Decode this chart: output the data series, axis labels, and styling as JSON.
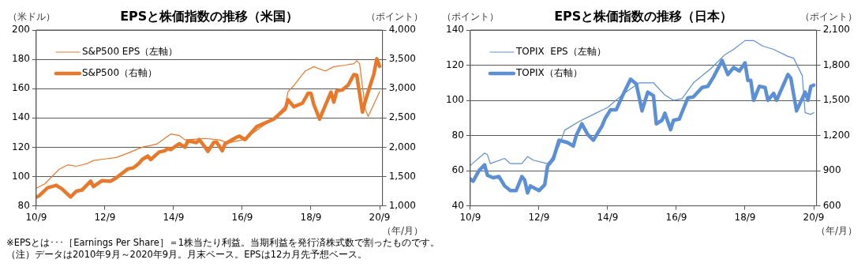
{
  "chart_data": [
    {
      "type": "line",
      "title": "EPSと株価指数の推移（米国）",
      "ylabel": "（米ドル）",
      "y2label": "（ポイント）",
      "xlabel": "（年/月）",
      "xlim": [
        "2010-09",
        "2020-10"
      ],
      "xticks": [
        {
          "value": "2010-09",
          "label": "10/9"
        },
        {
          "value": "2012-09",
          "label": "12/9"
        },
        {
          "value": "2014-09",
          "label": "14/9"
        },
        {
          "value": "2016-09",
          "label": "16/9"
        },
        {
          "value": "2018-09",
          "label": "18/9"
        },
        {
          "value": "2020-09",
          "label": "20/9"
        }
      ],
      "ylim": [
        80,
        200
      ],
      "yticks": [
        80,
        100,
        120,
        140,
        160,
        180,
        200
      ],
      "y2lim": [
        1000,
        4000
      ],
      "y2ticks": [
        {
          "value": 1000,
          "label": "1,000"
        },
        {
          "value": 1500,
          "label": "1,500"
        },
        {
          "value": 2000,
          "label": "2,000"
        },
        {
          "value": 2500,
          "label": "2,500"
        },
        {
          "value": 3000,
          "label": "3,000"
        },
        {
          "value": 3500,
          "label": "3,500"
        },
        {
          "value": 4000,
          "label": "4,000"
        }
      ],
      "grid": "y",
      "legend": "top left",
      "marker": "none",
      "series": [
        {
          "name": "S&P500 EPS（左軸）",
          "color": "#e8782a",
          "x": [
            "2010-09",
            "2010-12",
            "2011-05",
            "2011-08",
            "2011-11",
            "2012-03",
            "2012-05",
            "2012-09",
            "2013-01",
            "2013-05",
            "2013-10",
            "2014-03",
            "2014-08",
            "2014-11",
            "2015-01",
            "2015-08",
            "2016-01",
            "2016-04",
            "2016-09",
            "2017-01",
            "2017-08",
            "2017-12",
            "2018-01",
            "2018-03",
            "2018-07",
            "2018-10",
            "2019-02",
            "2019-05",
            "2019-09",
            "2019-12",
            "2020-01",
            "2020-02",
            "2020-04",
            "2020-05",
            "2020-09"
          ],
          "values": [
            92,
            95,
            105,
            108,
            107,
            109,
            111,
            112,
            113,
            116,
            120,
            122,
            129,
            128,
            125,
            126,
            125,
            123,
            125,
            130,
            140,
            148,
            158,
            162,
            172,
            175,
            172,
            175,
            176,
            177,
            179,
            177,
            146,
            141,
            158
          ]
        },
        {
          "name": "S&P500（右軸）",
          "color": "#e8782a",
          "axis": "y2",
          "x": [
            "2010-09",
            "2010-10",
            "2011-01",
            "2011-04",
            "2011-06",
            "2011-09",
            "2011-11",
            "2012-01",
            "2012-04",
            "2012-05",
            "2012-08",
            "2012-11",
            "2013-01",
            "2013-05",
            "2013-07",
            "2013-09",
            "2013-10",
            "2013-12",
            "2014-01",
            "2014-04",
            "2014-06",
            "2014-07",
            "2014-08",
            "2014-11",
            "2015-01",
            "2015-02",
            "2015-05",
            "2015-06",
            "2015-08",
            "2015-09",
            "2015-11",
            "2015-12",
            "2016-02",
            "2016-03",
            "2016-07",
            "2016-08",
            "2016-10",
            "2017-02",
            "2017-08",
            "2017-12",
            "2018-01",
            "2018-03",
            "2018-06",
            "2018-08",
            "2018-09",
            "2018-10",
            "2018-12",
            "2019-02",
            "2019-04",
            "2019-05",
            "2019-06",
            "2019-08",
            "2019-10",
            "2019-12",
            "2020-01",
            "2020-03",
            "2020-04",
            "2020-06",
            "2020-07",
            "2020-08",
            "2020-09"
          ],
          "values": [
            1150,
            1170,
            1310,
            1350,
            1290,
            1150,
            1250,
            1270,
            1420,
            1330,
            1430,
            1420,
            1480,
            1630,
            1650,
            1730,
            1790,
            1850,
            1790,
            1920,
            1940,
            1980,
            1960,
            2060,
            2000,
            2110,
            2080,
            2130,
            2000,
            1930,
            2080,
            2090,
            1940,
            2060,
            2170,
            2190,
            2130,
            2350,
            2480,
            2650,
            2810,
            2690,
            2750,
            2920,
            2920,
            2730,
            2480,
            2710,
            2940,
            2770,
            2960,
            2980,
            3060,
            3240,
            3230,
            2600,
            2790,
            3100,
            3250,
            3510,
            3380
          ]
        }
      ],
      "annotations": [
        "※EPSとは･･･［Earnings Per Share］＝1株当たり利益。当期利益を発行済株式数で割ったものです。",
        "（注）データは2010年9月～2020年9月。月末ベース。EPSは12カ月先予想ベース。"
      ]
    },
    {
      "type": "line",
      "title": "EPSと株価指数の推移（日本）",
      "ylabel": "（ポイント）",
      "y2label": "（ポイント）",
      "xlabel": "（年/月）",
      "xlim": [
        "2010-09",
        "2020-10"
      ],
      "xticks": [
        {
          "value": "2010-09",
          "label": "10/9"
        },
        {
          "value": "2012-09",
          "label": "12/9"
        },
        {
          "value": "2014-09",
          "label": "14/9"
        },
        {
          "value": "2016-09",
          "label": "16/9"
        },
        {
          "value": "2018-09",
          "label": "18/9"
        },
        {
          "value": "2020-09",
          "label": "20/9"
        }
      ],
      "ylim": [
        40,
        140
      ],
      "yticks": [
        40,
        60,
        80,
        100,
        120,
        140
      ],
      "y2lim": [
        600,
        2100
      ],
      "y2ticks": [
        600,
        900,
        {
          "value": 1200,
          "label": "1,200"
        },
        {
          "value": 1500,
          "label": "1,500"
        },
        {
          "value": 1800,
          "label": "1,800"
        },
        {
          "value": 2100,
          "label": "2,100"
        }
      ],
      "grid": "y",
      "legend": "top left",
      "marker": "none",
      "series": [
        {
          "name": "TOPIX  EPS（左軸）",
          "color": "#5b8fd6",
          "x": [
            "2010-09",
            "2011-02",
            "2011-03",
            "2011-04",
            "2011-09",
            "2011-11",
            "2012-03",
            "2012-05",
            "2012-07",
            "2012-12",
            "2013-01",
            "2013-04",
            "2013-06",
            "2013-11",
            "2014-04",
            "2014-09",
            "2015-02",
            "2015-08",
            "2016-01",
            "2016-05",
            "2016-08",
            "2016-11",
            "2017-03",
            "2017-09",
            "2018-02",
            "2018-05",
            "2018-09",
            "2018-12",
            "2019-03",
            "2019-07",
            "2019-12",
            "2020-02",
            "2020-05",
            "2020-06",
            "2020-08",
            "2020-09"
          ],
          "values": [
            63,
            70,
            69,
            64,
            67,
            64,
            64,
            68,
            66,
            64,
            66,
            74,
            83,
            88,
            92,
            96,
            103,
            110,
            110,
            103,
            100,
            101,
            110,
            118,
            126,
            129,
            134,
            134,
            131,
            129,
            125,
            124,
            114,
            93,
            92,
            93
          ]
        },
        {
          "name": "TOPIX（右軸）",
          "color": "#5b8fd6",
          "axis": "y2",
          "x": [
            "2010-09",
            "2010-10",
            "2010-12",
            "2011-02",
            "2011-03",
            "2011-05",
            "2011-07",
            "2011-09",
            "2011-11",
            "2012-01",
            "2012-03",
            "2012-04",
            "2012-05",
            "2012-06",
            "2012-09",
            "2012-11",
            "2012-12",
            "2013-02",
            "2013-04",
            "2013-07",
            "2013-09",
            "2013-10",
            "2013-12",
            "2014-02",
            "2014-04",
            "2014-07",
            "2014-08",
            "2014-10",
            "2014-12",
            "2015-02",
            "2015-05",
            "2015-07",
            "2015-09",
            "2015-11",
            "2016-01",
            "2016-02",
            "2016-04",
            "2016-05",
            "2016-07",
            "2016-08",
            "2016-10",
            "2017-01",
            "2017-03",
            "2017-06",
            "2017-08",
            "2017-10",
            "2018-01",
            "2018-03",
            "2018-05",
            "2018-07",
            "2018-09",
            "2018-10",
            "2018-11",
            "2018-12",
            "2019-02",
            "2019-04",
            "2019-05",
            "2019-07",
            "2019-08",
            "2019-10",
            "2019-12",
            "2020-01",
            "2020-03",
            "2020-06",
            "2020-07",
            "2020-08",
            "2020-09"
          ],
          "values": [
            830,
            810,
            900,
            950,
            860,
            840,
            850,
            770,
            730,
            730,
            850,
            820,
            710,
            770,
            730,
            780,
            940,
            1000,
            1160,
            1140,
            1110,
            1200,
            1300,
            1210,
            1160,
            1280,
            1340,
            1420,
            1420,
            1530,
            1680,
            1640,
            1410,
            1570,
            1540,
            1300,
            1330,
            1390,
            1250,
            1330,
            1340,
            1520,
            1530,
            1610,
            1620,
            1700,
            1840,
            1720,
            1780,
            1750,
            1820,
            1670,
            1670,
            1500,
            1620,
            1610,
            1500,
            1560,
            1500,
            1610,
            1720,
            1690,
            1410,
            1570,
            1500,
            1620,
            1630
          ]
        }
      ]
    }
  ]
}
